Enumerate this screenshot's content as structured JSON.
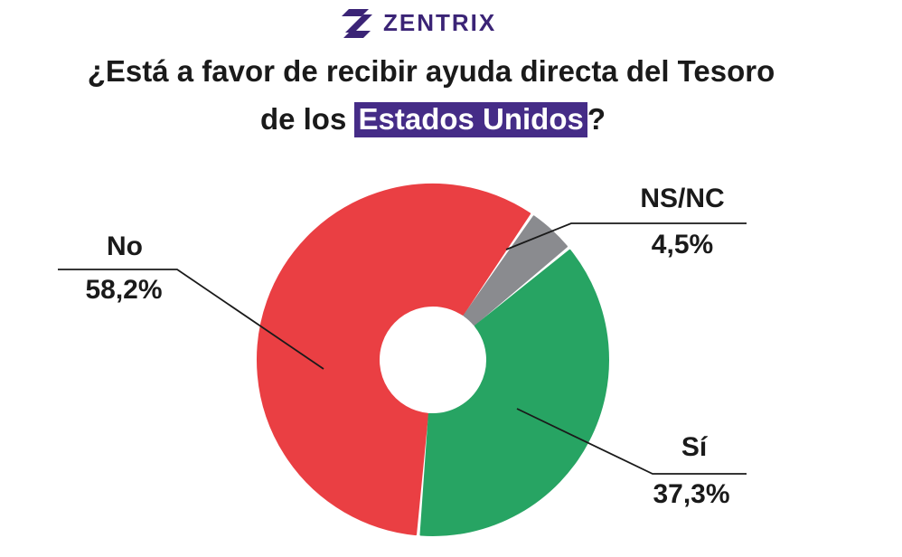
{
  "brand": {
    "name": "ZENTRIX",
    "color": "#3b2476"
  },
  "title": {
    "line1": "¿Está a favor de recibir ayuda directa del Tesoro",
    "line2_prefix": "de los ",
    "line2_highlight": "Estados Unidos",
    "line2_suffix": "?",
    "highlight_color": "#452c87"
  },
  "chart_data": {
    "type": "pie",
    "donut": true,
    "title": "¿Está a favor de recibir ayuda directa del Tesoro de los Estados Unidos?",
    "categories": [
      "No",
      "NS/NC",
      "Sí"
    ],
    "values": [
      58.2,
      4.5,
      37.3
    ],
    "value_labels": [
      "58,2%",
      "4,5%",
      "37,3%"
    ],
    "colors": [
      "#ea3f43",
      "#8a8b8f",
      "#27a463"
    ],
    "label_placement": {
      "No": "left",
      "NS/NC": "top-right",
      "Sí": "bottom-right"
    }
  }
}
